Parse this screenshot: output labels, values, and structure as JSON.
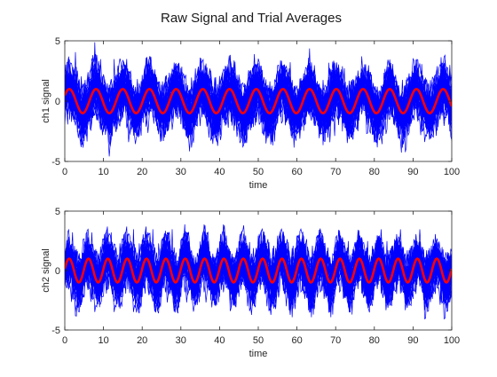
{
  "figure": {
    "title": "Raw Signal and Trial Averages"
  },
  "chart_data": [
    {
      "type": "line",
      "xlabel": "time",
      "ylabel": "ch1 signal",
      "xlim": [
        0,
        100
      ],
      "ylim": [
        -5,
        5
      ],
      "xticks": [
        0,
        10,
        20,
        30,
        40,
        50,
        60,
        70,
        80,
        90,
        100
      ],
      "yticks": [
        -5,
        0,
        5
      ],
      "grid": false,
      "series": [
        {
          "role": "raw-trials",
          "color": "#0000ff",
          "trials": 40,
          "mean_model": {
            "amplitude": 1.0,
            "period": 6.9,
            "phase": 0.5
          },
          "noise_sd": 1.0
        },
        {
          "role": "trial-average",
          "color": "#ff0000",
          "model": {
            "amplitude": 1.0,
            "period": 6.9,
            "phase": 0.5
          }
        }
      ]
    },
    {
      "type": "line",
      "xlabel": "time",
      "ylabel": "ch2 signal",
      "xlim": [
        0,
        100
      ],
      "ylim": [
        -5,
        5
      ],
      "xticks": [
        0,
        10,
        20,
        30,
        40,
        50,
        60,
        70,
        80,
        90,
        100
      ],
      "yticks": [
        -5,
        0,
        5
      ],
      "grid": false,
      "series": [
        {
          "role": "raw-trials",
          "color": "#0000ff",
          "trials": 40,
          "mean_model": {
            "amplitude": 1.0,
            "period": 5.0,
            "phase": 0.15
          },
          "noise_sd": 1.0
        },
        {
          "role": "trial-average",
          "color": "#ff0000",
          "model": {
            "amplitude": 1.0,
            "period": 5.0,
            "phase": 0.15
          }
        }
      ]
    }
  ]
}
